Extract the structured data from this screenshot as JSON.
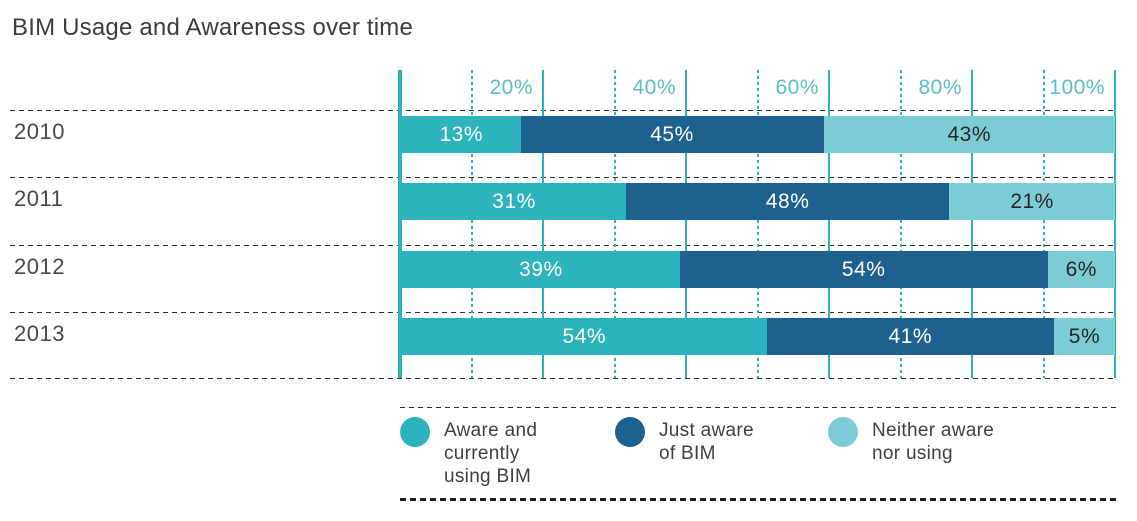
{
  "title": "BIM Usage and Awareness over time",
  "chart_data": {
    "type": "bar",
    "stacked": true,
    "orientation": "horizontal",
    "title": "BIM Usage and Awareness over time",
    "categories": [
      "2010",
      "2011",
      "2012",
      "2013"
    ],
    "series": [
      {
        "name": "Aware and currently using BIM",
        "legend_lines": [
          "Aware and",
          "currently",
          "using BIM"
        ],
        "color": "#2db3bb",
        "label_color": "#ffffff",
        "values": [
          13,
          31,
          39,
          54
        ]
      },
      {
        "name": "Just aware of BIM",
        "legend_lines": [
          "Just aware",
          "of BIM"
        ],
        "color": "#1f618e",
        "label_color": "#ffffff",
        "values": [
          45,
          48,
          54,
          41
        ]
      },
      {
        "name": "Neither aware nor using",
        "legend_lines": [
          "Neither aware",
          "nor using"
        ],
        "color": "#7bccd4",
        "label_color": "#26262a",
        "values": [
          43,
          21,
          6,
          5
        ]
      }
    ],
    "value_label_suffix": "%",
    "x_axis": {
      "range": [
        0,
        100
      ],
      "ticks": [
        {
          "pct": 20,
          "label": "20%"
        },
        {
          "pct": 40,
          "label": "40%"
        },
        {
          "pct": 60,
          "label": "60%"
        },
        {
          "pct": 80,
          "label": "80%"
        },
        {
          "pct": 100,
          "label": "100%"
        }
      ],
      "minor_ticks_pct": [
        10,
        30,
        50,
        70,
        90
      ],
      "tick_label_color": "#5cbdc6"
    },
    "grid": {
      "line_color": "#2db3bb",
      "row_separator_color": "#2e2e2e"
    },
    "legend_position": "bottom"
  }
}
